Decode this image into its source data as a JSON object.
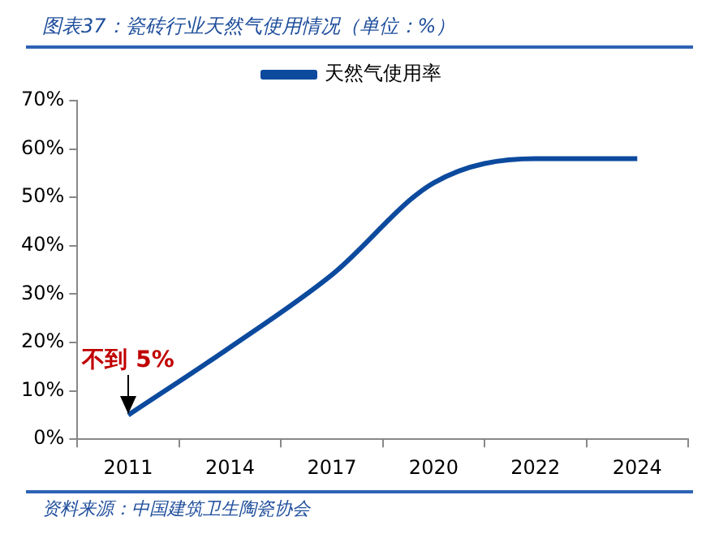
{
  "chart_data": {
    "type": "line",
    "title": "图表37：瓷砖行业天然气使用情况（单位：%）",
    "categories": [
      "2011",
      "2014",
      "2017",
      "2020",
      "2022",
      "2024"
    ],
    "series": [
      {
        "name": "天然气使用率",
        "color": "#0c4a9e",
        "values": [
          5,
          19,
          34,
          53,
          58,
          58
        ]
      }
    ],
    "ylim": [
      0,
      70
    ],
    "yticks": [
      {
        "value": 0,
        "label": "0%"
      },
      {
        "value": 10,
        "label": "10%"
      },
      {
        "value": 20,
        "label": "20%"
      },
      {
        "value": 30,
        "label": "30%"
      },
      {
        "value": 40,
        "label": "40%"
      },
      {
        "value": 50,
        "label": "50%"
      },
      {
        "value": 60,
        "label": "60%"
      },
      {
        "value": 70,
        "label": "70%"
      }
    ],
    "grid": false,
    "legend": "top",
    "marker": "none",
    "line_style": "solid",
    "annotations": [
      {
        "text": "不到 5%",
        "x": "2011",
        "y": 5
      },
      "资料来源：中国建筑卫生陶瓷协会"
    ]
  }
}
